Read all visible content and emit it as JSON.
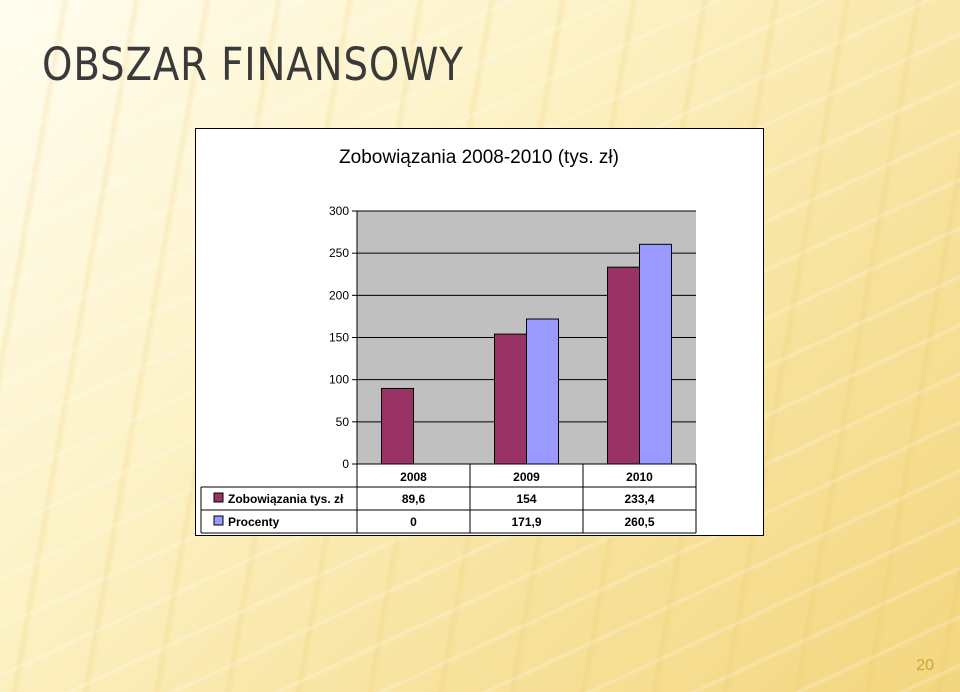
{
  "slide": {
    "title": "OBSZAR FINANSOWY",
    "page_number": "20"
  },
  "chart_data": {
    "type": "bar",
    "title": "Zobowiązania 2008-2010 (tys. zł)",
    "categories": [
      "2008",
      "2009",
      "2010"
    ],
    "series": [
      {
        "name": "Zobowiązania tys. zł",
        "values": [
          89.6,
          154,
          233.4
        ],
        "labels": [
          "89,6",
          "154",
          "233,4"
        ],
        "color": "#993366"
      },
      {
        "name": "Procenty",
        "values": [
          0,
          171.9,
          260.5
        ],
        "labels": [
          "0",
          "171,9",
          "260,5"
        ],
        "color": "#9999ff"
      }
    ],
    "ylim": [
      0,
      300
    ],
    "yticks": [
      "0",
      "50",
      "100",
      "150",
      "200",
      "250",
      "300"
    ],
    "grid": true,
    "legend": "data-table",
    "plot_background": "#c0c0c0"
  }
}
